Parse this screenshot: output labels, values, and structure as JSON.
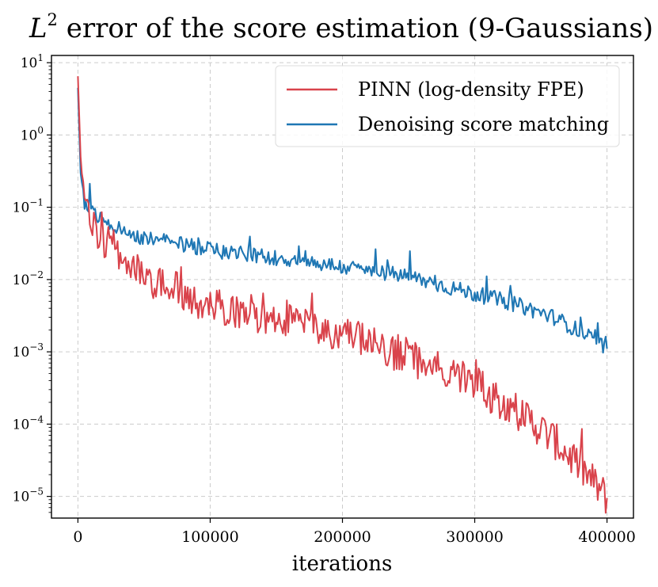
{
  "chart_data": {
    "type": "line",
    "title_main": "L",
    "title_sup": "2",
    "title_rest": " error of the score estimation (9-Gaussians)",
    "xlabel": "iterations",
    "ylabel": "",
    "xscale": "linear",
    "yscale": "log",
    "xlim": [
      -20000,
      420000
    ],
    "ylim_log10": [
      -5.3,
      1.1
    ],
    "grid": true,
    "legend_position": "top-right",
    "x_ticks": [
      0,
      100000,
      200000,
      300000,
      400000
    ],
    "x_tick_labels": [
      "0",
      "100000",
      "200000",
      "300000",
      "400000"
    ],
    "y_ticks": [
      {
        "base": "10",
        "exp": "1",
        "value": 10
      },
      {
        "base": "10",
        "exp": "0",
        "value": 1
      },
      {
        "base": "10",
        "exp": "−1",
        "value": 0.1
      },
      {
        "base": "10",
        "exp": "−2",
        "value": 0.01
      },
      {
        "base": "10",
        "exp": "−3",
        "value": 0.001
      },
      {
        "base": "10",
        "exp": "−4",
        "value": 0.0001
      },
      {
        "base": "10",
        "exp": "−5",
        "value": 1e-05
      }
    ],
    "series": [
      {
        "name": "PINN (log-density FPE)",
        "color": "#d9434b",
        "anchors_x": [
          0,
          2000,
          5000,
          10000,
          20000,
          35000,
          50000,
          80000,
          100000,
          130000,
          160000,
          200000,
          250000,
          300000,
          320000,
          340000,
          360000,
          380000,
          400000
        ],
        "anchors_y": [
          6.5,
          0.5,
          0.1,
          0.06,
          0.035,
          0.022,
          0.011,
          0.0063,
          0.0045,
          0.0035,
          0.0028,
          0.0017,
          0.00085,
          0.00035,
          0.00021,
          0.00012,
          6e-05,
          2.5e-05,
          9.5e-06
        ],
        "noise_log10": 0.26
      },
      {
        "name": "Denoising score matching",
        "color": "#1f77b4",
        "anchors_x": [
          0,
          2000,
          5000,
          10000,
          20000,
          35000,
          50000,
          80000,
          100000,
          130000,
          160000,
          200000,
          250000,
          300000,
          320000,
          340000,
          360000,
          380000,
          400000
        ],
        "anchors_y": [
          4.5,
          0.3,
          0.12,
          0.09,
          0.065,
          0.045,
          0.038,
          0.03,
          0.026,
          0.022,
          0.019,
          0.015,
          0.011,
          0.0063,
          0.0052,
          0.004,
          0.003,
          0.0019,
          0.0011
        ],
        "noise_log10": 0.11
      }
    ]
  }
}
